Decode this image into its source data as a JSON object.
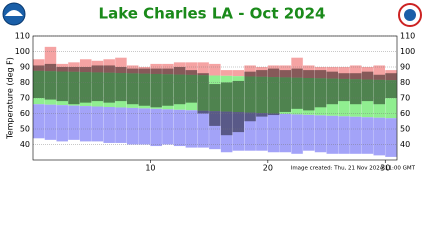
{
  "chart_data": {
    "type": "climate_range",
    "title": "Lake Charles LA - Oct 2024",
    "y_label": "Temperature (deg F)",
    "footer": "Image created: Thu, 21 Nov 2024 11:00 GMT",
    "x": [
      1,
      2,
      3,
      4,
      5,
      6,
      7,
      8,
      9,
      10,
      11,
      12,
      13,
      14,
      15,
      16,
      17,
      18,
      19,
      20,
      21,
      22,
      23,
      24,
      25,
      26,
      27,
      28,
      29,
      30,
      31
    ],
    "xlim": [
      0,
      31
    ],
    "xticks": [
      10,
      20,
      30
    ],
    "ylim": [
      30,
      110
    ],
    "yticks": [
      40,
      50,
      60,
      70,
      80,
      90,
      100,
      110
    ],
    "record_high": [
      95,
      103,
      92,
      93,
      95,
      94,
      95,
      96,
      91,
      90,
      92,
      92,
      93,
      93,
      93,
      92,
      88,
      88,
      91,
      90,
      91,
      91,
      96,
      91,
      90,
      90,
      90,
      91,
      90,
      91,
      88
    ],
    "normal_high": [
      87.5,
      87.3,
      87.1,
      86.9,
      86.7,
      86.5,
      86.3,
      86.1,
      85.9,
      85.7,
      85.5,
      85.3,
      85.1,
      84.9,
      84.7,
      84.5,
      84.3,
      84.1,
      83.9,
      83.7,
      83.5,
      83.3,
      83.1,
      82.9,
      82.7,
      82.5,
      82.3,
      82.1,
      81.9,
      81.7,
      81.5
    ],
    "normal_low": [
      66,
      65.7,
      65.4,
      65.1,
      64.8,
      64.5,
      64.2,
      63.9,
      63.6,
      63.3,
      63,
      62.7,
      62.4,
      62.1,
      61.8,
      61.5,
      61.2,
      60.9,
      60.6,
      60.3,
      60,
      59.7,
      59.4,
      59.1,
      58.8,
      58.5,
      58.2,
      57.9,
      57.6,
      57.3,
      57
    ],
    "record_low": [
      44,
      43,
      42,
      43,
      42,
      42,
      41,
      41,
      40,
      40,
      39,
      40,
      39,
      38,
      38,
      37,
      35,
      36,
      36,
      36,
      35,
      35,
      34,
      36,
      35,
      34,
      34,
      34,
      34,
      33,
      32
    ],
    "observed_high": [
      91,
      92,
      90,
      90,
      90,
      91,
      91,
      90,
      89,
      89,
      89,
      89,
      90,
      88,
      86,
      79,
      80,
      81,
      87,
      88,
      89,
      88,
      89,
      88,
      88,
      87,
      86,
      86,
      87,
      85,
      86
    ],
    "observed_low": [
      70,
      69,
      68,
      66,
      67,
      68,
      67,
      68,
      66,
      65,
      64,
      65,
      66,
      67,
      60,
      52,
      46,
      48,
      55,
      58,
      59,
      61,
      63,
      62,
      64,
      66,
      68,
      66,
      68,
      66,
      70
    ],
    "colors": {
      "record_high": "#f5a3a3",
      "normal": "#90ee90",
      "record_low": "#a3a3f8",
      "observed": "rgba(0,0,0,0.45)"
    },
    "grid": true
  }
}
